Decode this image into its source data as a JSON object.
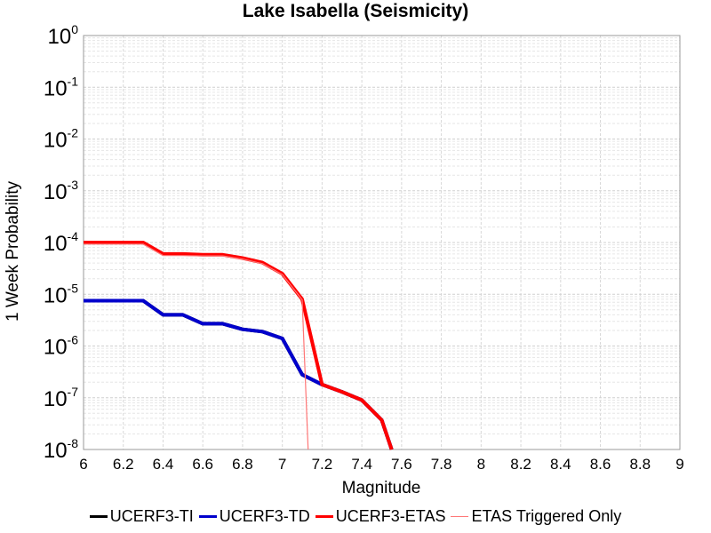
{
  "chart_data": {
    "type": "line",
    "title": "Lake Isabella (Seismicity)",
    "xlabel": "Magnitude",
    "ylabel": "1 Week Probability",
    "xlim": [
      6,
      9
    ],
    "ylim": [
      1e-08,
      1
    ],
    "yscale": "log",
    "grid": true,
    "legend_position": "bottom",
    "xticks": [
      "6",
      "6.2",
      "6.4",
      "6.6",
      "6.8",
      "7",
      "7.2",
      "7.4",
      "7.6",
      "7.8",
      "8",
      "8.2",
      "8.4",
      "8.6",
      "8.8",
      "9"
    ],
    "yticks": [
      {
        "base": "10",
        "exp": "0"
      },
      {
        "base": "10",
        "exp": "-1"
      },
      {
        "base": "10",
        "exp": "-2"
      },
      {
        "base": "10",
        "exp": "-3"
      },
      {
        "base": "10",
        "exp": "-4"
      },
      {
        "base": "10",
        "exp": "-5"
      },
      {
        "base": "10",
        "exp": "-6"
      },
      {
        "base": "10",
        "exp": "-7"
      },
      {
        "base": "10",
        "exp": "-8"
      }
    ],
    "series": [
      {
        "name": "UCERF3-TI",
        "color": "#000000",
        "x": [
          6.0,
          6.1,
          6.2,
          6.3,
          6.4,
          6.5,
          6.6,
          6.7,
          6.8,
          6.9,
          7.0,
          7.1,
          7.2,
          7.3,
          7.4,
          7.5,
          7.55
        ],
        "values": [
          7.5e-06,
          7.5e-06,
          7.5e-06,
          7.5e-06,
          4e-06,
          4e-06,
          2.7e-06,
          2.7e-06,
          2.1e-06,
          1.9e-06,
          1.4e-06,
          2.8e-07,
          1.8e-07,
          1.3e-07,
          9e-08,
          3.7e-08,
          1e-08
        ]
      },
      {
        "name": "UCERF3-TD",
        "color": "#0000cc",
        "x": [
          6.0,
          6.1,
          6.2,
          6.3,
          6.4,
          6.5,
          6.6,
          6.7,
          6.8,
          6.9,
          7.0,
          7.1,
          7.2,
          7.3,
          7.4,
          7.5,
          7.55
        ],
        "values": [
          7.5e-06,
          7.5e-06,
          7.5e-06,
          7.5e-06,
          4e-06,
          4e-06,
          2.7e-06,
          2.7e-06,
          2.1e-06,
          1.9e-06,
          1.4e-06,
          2.8e-07,
          1.8e-07,
          1.3e-07,
          9e-08,
          3.7e-08,
          1e-08
        ]
      },
      {
        "name": "UCERF3-ETAS",
        "color": "#ff0000",
        "x": [
          6.0,
          6.1,
          6.2,
          6.3,
          6.4,
          6.5,
          6.6,
          6.7,
          6.8,
          6.9,
          7.0,
          7.1,
          7.2,
          7.3,
          7.4,
          7.5,
          7.55
        ],
        "values": [
          0.0001,
          0.0001,
          0.0001,
          0.0001,
          6e-05,
          6e-05,
          5.8e-05,
          5.8e-05,
          5e-05,
          4.1e-05,
          2.5e-05,
          8e-06,
          1.8e-07,
          1.3e-07,
          9e-08,
          3.7e-08,
          1e-08
        ]
      },
      {
        "name": "ETAS Triggered Only",
        "color": "#ff7777",
        "x": [
          6.0,
          6.1,
          6.2,
          6.3,
          6.4,
          6.5,
          6.6,
          6.7,
          6.8,
          6.9,
          7.0,
          7.1,
          7.13
        ],
        "values": [
          9.3e-05,
          9.3e-05,
          9.3e-05,
          9.3e-05,
          5.6e-05,
          5.6e-05,
          5.5e-05,
          5.5e-05,
          4.8e-05,
          3.9e-05,
          2.4e-05,
          7.8e-06,
          1e-08
        ]
      }
    ]
  }
}
